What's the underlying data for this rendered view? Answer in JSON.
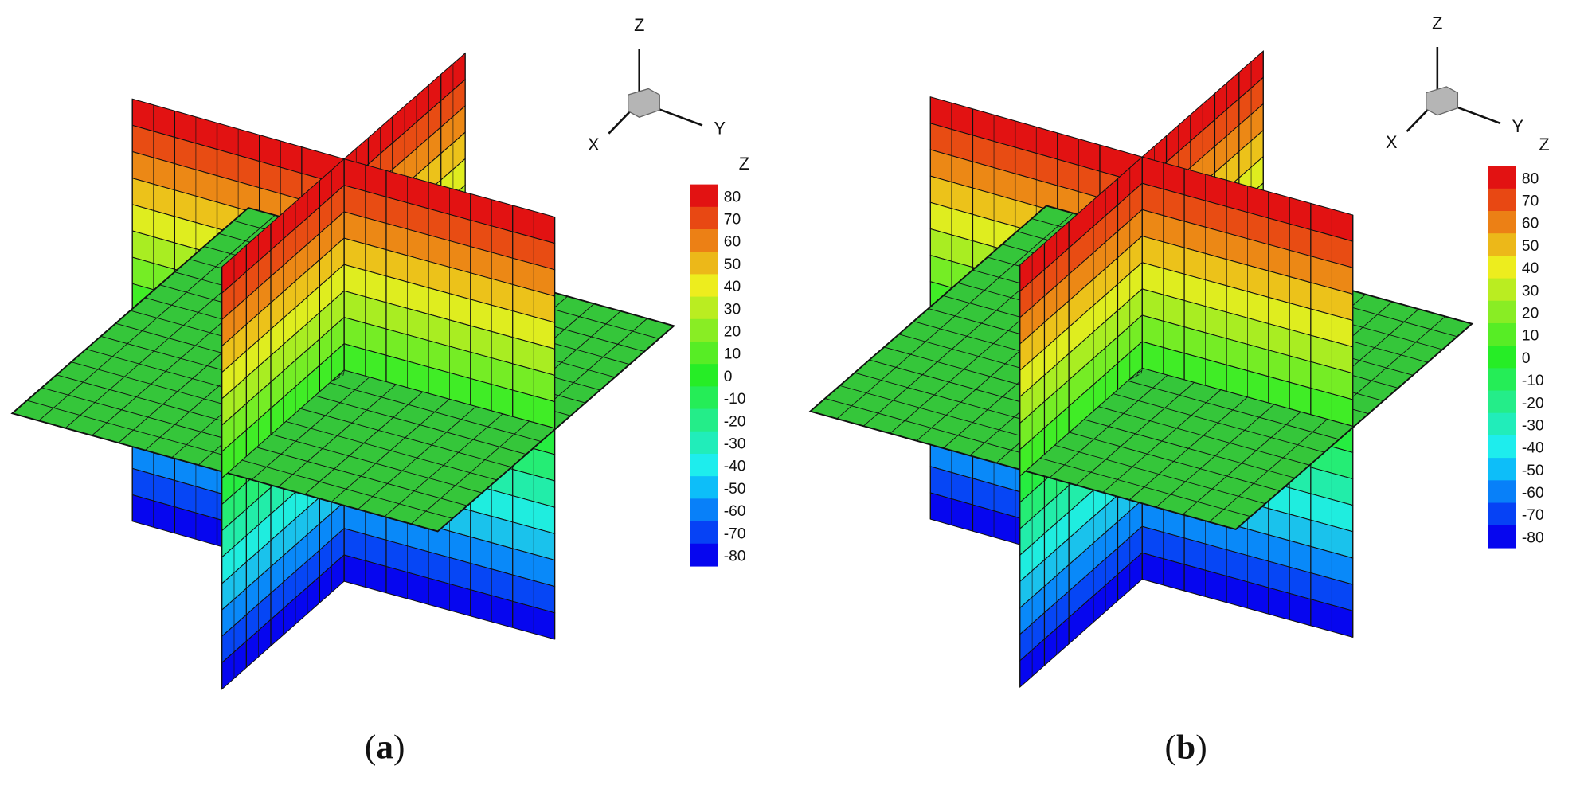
{
  "panels": [
    {
      "axes": {
        "z": "Z",
        "y": "Y",
        "x": "X"
      },
      "colorbar": {
        "title": "Z",
        "levels": [
          80,
          70,
          60,
          50,
          40,
          30,
          20,
          10,
          0,
          -10,
          -20,
          -30,
          -40,
          -50,
          -60,
          -70,
          -80
        ]
      },
      "caption": {
        "open": "(",
        "letter": "a",
        "close": ")"
      }
    },
    {
      "axes": {
        "z": "Z",
        "y": "Y",
        "x": "X"
      },
      "colorbar": {
        "title": "Z",
        "levels": [
          80,
          70,
          60,
          50,
          40,
          30,
          20,
          10,
          0,
          -10,
          -20,
          -30,
          -40,
          -50,
          -60,
          -70,
          -80
        ]
      },
      "caption": {
        "open": "(",
        "letter": "b",
        "close": ")"
      }
    }
  ]
}
